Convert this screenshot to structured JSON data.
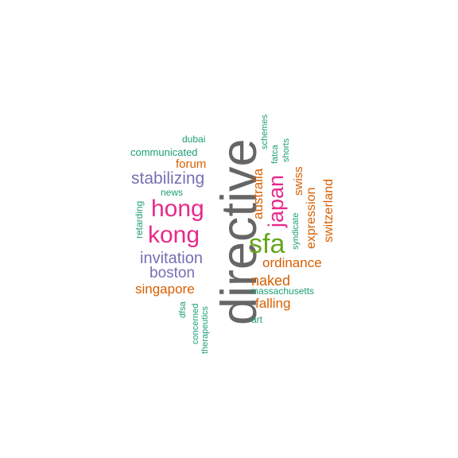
{
  "words": [
    {
      "key": "directive",
      "text": "directive",
      "color": "#666666",
      "rotated": true
    },
    {
      "key": "sfa",
      "text": "sfa",
      "color": "#66a61e",
      "rotated": false
    },
    {
      "key": "hong",
      "text": "hong",
      "color": "#e7298a",
      "rotated": false
    },
    {
      "key": "kong",
      "text": "kong",
      "color": "#e7298a",
      "rotated": false
    },
    {
      "key": "japan",
      "text": "japan",
      "color": "#e7298a",
      "rotated": true
    },
    {
      "key": "stabilizing",
      "text": "stabilizing",
      "color": "#7570b3",
      "rotated": false
    },
    {
      "key": "invitation",
      "text": "invitation",
      "color": "#7570b3",
      "rotated": false
    },
    {
      "key": "boston",
      "text": "boston",
      "color": "#7570b3",
      "rotated": false
    },
    {
      "key": "australia",
      "text": "australia",
      "color": "#d95f02",
      "rotated": true
    },
    {
      "key": "naked",
      "text": "naked",
      "color": "#d95f02",
      "rotated": false
    },
    {
      "key": "ordinance",
      "text": "ordinance",
      "color": "#d95f02",
      "rotated": false
    },
    {
      "key": "singapore",
      "text": "singapore",
      "color": "#d95f02",
      "rotated": false
    },
    {
      "key": "falling",
      "text": "falling",
      "color": "#d95f02",
      "rotated": false
    },
    {
      "key": "switzerland",
      "text": "switzerland",
      "color": "#d95f02",
      "rotated": true
    },
    {
      "key": "expression",
      "text": "expression",
      "color": "#d95f02",
      "rotated": true
    },
    {
      "key": "swiss",
      "text": "swiss",
      "color": "#d95f02",
      "rotated": true
    },
    {
      "key": "forum",
      "text": "forum",
      "color": "#d95f02",
      "rotated": false
    },
    {
      "key": "communicated",
      "text": "communicated",
      "color": "#1b9e77",
      "rotated": false
    },
    {
      "key": "dubai",
      "text": "dubai",
      "color": "#1b9e77",
      "rotated": false
    },
    {
      "key": "news",
      "text": "news",
      "color": "#1b9e77",
      "rotated": false
    },
    {
      "key": "retarding",
      "text": "retarding",
      "color": "#1b9e77",
      "rotated": true
    },
    {
      "key": "schemes",
      "text": "schemes",
      "color": "#1b9e77",
      "rotated": true
    },
    {
      "key": "fatca",
      "text": "fatca",
      "color": "#1b9e77",
      "rotated": true
    },
    {
      "key": "shorts",
      "text": "shorts",
      "color": "#1b9e77",
      "rotated": true
    },
    {
      "key": "syndicate",
      "text": "syndicate",
      "color": "#1b9e77",
      "rotated": true
    },
    {
      "key": "massachusetts",
      "text": "massachusetts",
      "color": "#1b9e77",
      "rotated": false
    },
    {
      "key": "art",
      "text": "art",
      "color": "#1b9e77",
      "rotated": false
    },
    {
      "key": "dfsa",
      "text": "dfsa",
      "color": "#1b9e77",
      "rotated": true
    },
    {
      "key": "concerned",
      "text": "concerned",
      "color": "#1b9e77",
      "rotated": true
    },
    {
      "key": "therapeutics",
      "text": "therapeutics",
      "color": "#1b9e77",
      "rotated": true
    }
  ]
}
